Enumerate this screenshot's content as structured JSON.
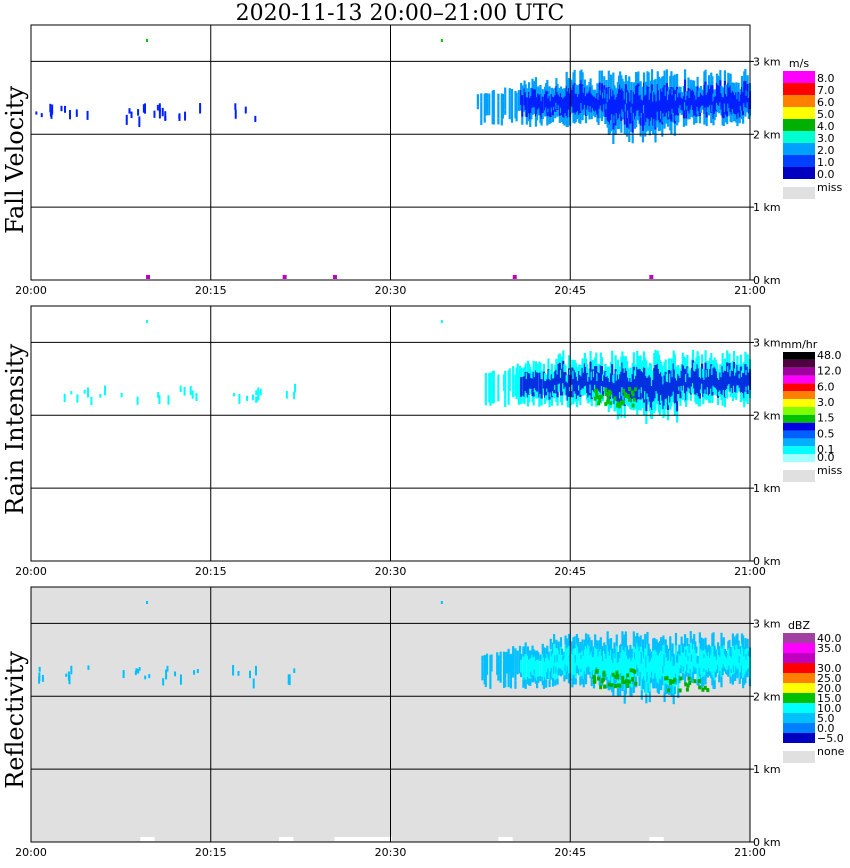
{
  "title": "2020-11-13   20:00–21:00 UTC",
  "chart_data": {
    "type": "heatmap",
    "x_ticks": [
      "20:00",
      "20:15",
      "20:30",
      "20:45",
      "21:00"
    ],
    "y_ticks": [
      "0 km",
      "1 km",
      "2 km",
      "3 km"
    ],
    "ylim_km": [
      0,
      3.5
    ],
    "panels": [
      {
        "id": "fall-velocity",
        "label": "Fall Velocity",
        "unit": "m/s",
        "background": "#ffffff",
        "legend": [
          {
            "label": "8.0",
            "color": "#ff00ff"
          },
          {
            "label": "7.0",
            "color": "#ff0000"
          },
          {
            "label": "6.0",
            "color": "#ff8000"
          },
          {
            "label": "5.0",
            "color": "#ffff00"
          },
          {
            "label": "4.0",
            "color": "#00b000"
          },
          {
            "label": "3.0",
            "color": "#00ffd0"
          },
          {
            "label": "2.0",
            "color": "#00a0ff"
          },
          {
            "label": "1.0",
            "color": "#0040ff"
          },
          {
            "label": "0.0",
            "color": "#0000c0"
          }
        ],
        "missing_label": "miss",
        "echo_color": "#0020ff",
        "edge_color": "#00a0ff",
        "core_color": "#0020ff"
      },
      {
        "id": "rain-intensity",
        "label": "Rain Intensity",
        "unit": "mm/hr",
        "background": "#ffffff",
        "legend": [
          {
            "label": "48.0",
            "color": "#000000"
          },
          {
            "label": "",
            "color": "#500040"
          },
          {
            "label": "12.0",
            "color": "#a000a0"
          },
          {
            "label": "",
            "color": "#ff00ff"
          },
          {
            "label": "6.0",
            "color": "#ff0000"
          },
          {
            "label": "",
            "color": "#ff8000"
          },
          {
            "label": "3.0",
            "color": "#ffff00"
          },
          {
            "label": "",
            "color": "#80ff00"
          },
          {
            "label": "1.5",
            "color": "#00c000"
          },
          {
            "label": "",
            "color": "#0000e0"
          },
          {
            "label": "0.5",
            "color": "#0060ff"
          },
          {
            "label": "",
            "color": "#00b0ff"
          },
          {
            "label": "0.1",
            "color": "#00ffff"
          },
          {
            "label": "0.0",
            "color": "#a0ffff"
          }
        ],
        "missing_label": "miss",
        "echo_color": "#00ffff",
        "edge_color": "#00ffff",
        "core_color": "#0030e0"
      },
      {
        "id": "reflectivity",
        "label": "Reflectivity",
        "unit": "dBZ",
        "background": "#e0e0e0",
        "legend": [
          {
            "label": "40.0",
            "color": "#a040a0"
          },
          {
            "label": "35.0",
            "color": "#ff00ff"
          },
          {
            "label": "",
            "color": "#c000c0"
          },
          {
            "label": "30.0",
            "color": "#ff0000"
          },
          {
            "label": "25.0",
            "color": "#ff8000"
          },
          {
            "label": "20.0",
            "color": "#ffff00"
          },
          {
            "label": "15.0",
            "color": "#00c000"
          },
          {
            "label": "10.0",
            "color": "#00ffff"
          },
          {
            "label": "5.0",
            "color": "#00c0ff"
          },
          {
            "label": "0.0",
            "color": "#0080ff"
          },
          {
            "label": "−5.0",
            "color": "#0000c0"
          }
        ],
        "missing_label": "none",
        "echo_color": "#00c0ff",
        "edge_color": "#00c0ff",
        "core_color": "#00ffff"
      }
    ]
  }
}
